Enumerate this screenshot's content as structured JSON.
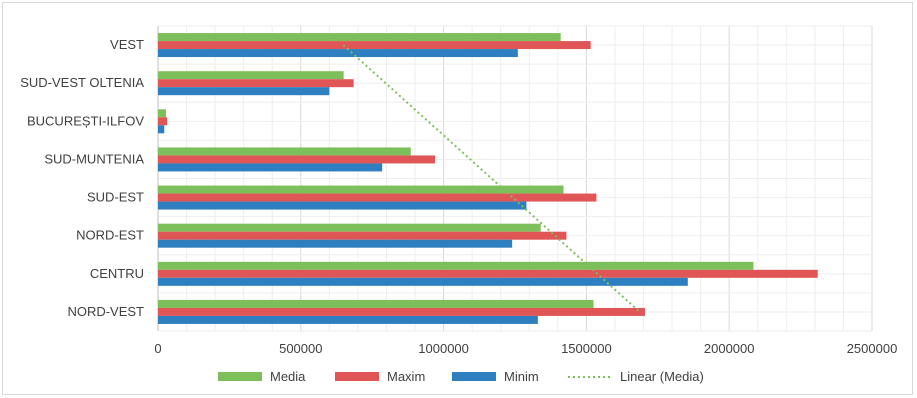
{
  "chart_data": {
    "type": "bar",
    "orientation": "horizontal",
    "title": "",
    "xlabel": "",
    "ylabel": "",
    "categories": [
      "VEST",
      "SUD-VEST OLTENIA",
      "BUCUREȘTI-ILFOV",
      "SUD-MUNTENIA",
      "SUD-EST",
      "NORD-EST",
      "CENTRU",
      "NORD-VEST"
    ],
    "series": [
      {
        "name": "Media",
        "color": "#7dc05b",
        "values": [
          1410000,
          650000,
          28000,
          885000,
          1420000,
          1340000,
          2085000,
          1525000
        ]
      },
      {
        "name": "Maxim",
        "color": "#e05656",
        "values": [
          1515000,
          685000,
          32000,
          970000,
          1535000,
          1430000,
          2310000,
          1705000
        ]
      },
      {
        "name": "Minim",
        "color": "#2e7fbf",
        "values": [
          1260000,
          600000,
          22000,
          785000,
          1290000,
          1240000,
          1855000,
          1330000
        ]
      }
    ],
    "trendline": {
      "name": "Linear (Media)",
      "color": "#7dc05b",
      "series": "Media",
      "type": "linear"
    },
    "xlim": [
      0,
      2500000
    ],
    "xticks": [
      "0",
      "500000",
      "1000000",
      "1500000",
      "2000000",
      "2500000"
    ],
    "grid": true,
    "legend_position": "bottom"
  }
}
